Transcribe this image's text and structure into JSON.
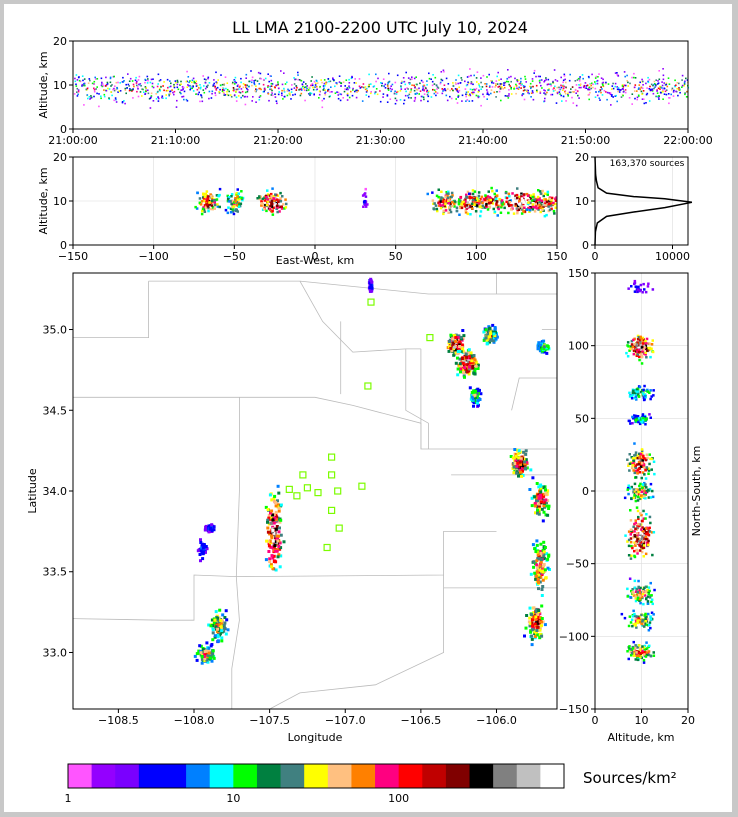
{
  "title": "LL LMA 2100-2200 UTC July 10, 2024",
  "colorbar_unit": "Sources/km²",
  "colorbar": {
    "colors": [
      "#ff55ff",
      "#9400ff",
      "#7a00ff",
      "#0000ff",
      "#0000ff",
      "#0080ff",
      "#00ffff",
      "#00ff00",
      "#008040",
      "#408080",
      "#ffff00",
      "#ffc080",
      "#ff8000",
      "#ff0080",
      "#ff0000",
      "#c00000",
      "#800000",
      "#000000",
      "#808080",
      "#c0c0c0",
      "#ffffff"
    ],
    "ticks": [
      {
        "value": 1,
        "label": "1"
      },
      {
        "value": 10,
        "label": "10"
      },
      {
        "value": 100,
        "label": "100"
      }
    ],
    "range": [
      1,
      1000
    ]
  },
  "chart_data": [
    {
      "id": "alt-time",
      "type": "heatmap",
      "ylabel": "Altitude, km",
      "xlabel": "",
      "xlim": [
        "21:00:00",
        "22:00:00"
      ],
      "ylim": [
        0,
        20
      ],
      "xticks": [
        "21:00:00",
        "21:10:00",
        "21:20:00",
        "21:30:00",
        "21:40:00",
        "21:50:00",
        "22:00:00"
      ],
      "yticks": [
        0,
        10,
        20
      ],
      "description_band": {
        "altitude_center_km": 9.5,
        "altitude_spread_km": 2.5
      }
    },
    {
      "id": "alt-ew",
      "type": "heatmap",
      "xlabel": "East-West, km",
      "ylabel": "Altitude, km",
      "xlim": [
        -150,
        150
      ],
      "ylim": [
        0,
        20
      ],
      "xticks": [
        -150,
        -100,
        -50,
        0,
        50,
        100,
        150
      ],
      "yticks": [
        0,
        10,
        20
      ],
      "clusters_ew_km": [
        -67,
        -50,
        -27,
        30,
        80,
        95,
        108,
        128,
        142
      ]
    },
    {
      "id": "histogram",
      "type": "line",
      "annotation": "163,370 sources",
      "xlim": [
        0,
        12000
      ],
      "ylim": [
        0,
        20
      ],
      "xticks": [
        0,
        10000
      ],
      "yticks": [
        0,
        10,
        20
      ],
      "x": [
        0,
        50,
        300,
        1500,
        5000,
        9000,
        12500,
        9000,
        5000,
        1500,
        400,
        200,
        80,
        0
      ],
      "y": [
        0,
        3,
        5,
        6.5,
        7.5,
        8.5,
        9.7,
        10.5,
        11,
        11.8,
        13,
        14.5,
        16,
        20
      ]
    },
    {
      "id": "plan",
      "type": "heatmap",
      "xlabel": "Longitude",
      "ylabel": "Latitude",
      "xlim": [
        -108.8,
        -105.6
      ],
      "ylim": [
        32.65,
        35.35
      ],
      "xticks": [
        -108.5,
        -108.0,
        -107.5,
        -107.0,
        -106.5,
        -106.0
      ],
      "xticklabels": [
        "−108.5",
        "−108.0",
        "−107.5",
        "−107.0",
        "−106.5",
        "−106.0"
      ],
      "yticks": [
        33.0,
        33.5,
        34.0,
        34.5,
        35.0
      ],
      "yticklabels": [
        "33.0",
        "33.5",
        "34.0",
        "34.5",
        "35.0"
      ],
      "stations": [
        {
          "lon": -106.83,
          "lat": 35.17
        },
        {
          "lon": -106.44,
          "lat": 34.95
        },
        {
          "lon": -106.85,
          "lat": 34.65
        },
        {
          "lon": -107.09,
          "lat": 34.21
        },
        {
          "lon": -107.28,
          "lat": 34.1
        },
        {
          "lon": -107.09,
          "lat": 34.1
        },
        {
          "lon": -107.25,
          "lat": 34.02
        },
        {
          "lon": -107.37,
          "lat": 34.01
        },
        {
          "lon": -107.32,
          "lat": 33.97
        },
        {
          "lon": -107.18,
          "lat": 33.99
        },
        {
          "lon": -107.05,
          "lat": 34.0
        },
        {
          "lon": -106.89,
          "lat": 34.03
        },
        {
          "lon": -107.09,
          "lat": 33.88
        },
        {
          "lon": -107.04,
          "lat": 33.77
        },
        {
          "lon": -107.12,
          "lat": 33.65
        }
      ]
    },
    {
      "id": "ns-alt",
      "type": "heatmap",
      "xlabel": "Altitude, km",
      "ylabel": "North-South, km",
      "xlim": [
        0,
        20
      ],
      "ylim": [
        -150,
        150
      ],
      "xticks": [
        0,
        10,
        20
      ],
      "yticks": [
        -150,
        -100,
        -50,
        0,
        50,
        100,
        150
      ],
      "yticklabels": [
        "−150",
        "−100",
        "−50",
        "0",
        "50",
        "100",
        "150"
      ]
    }
  ]
}
